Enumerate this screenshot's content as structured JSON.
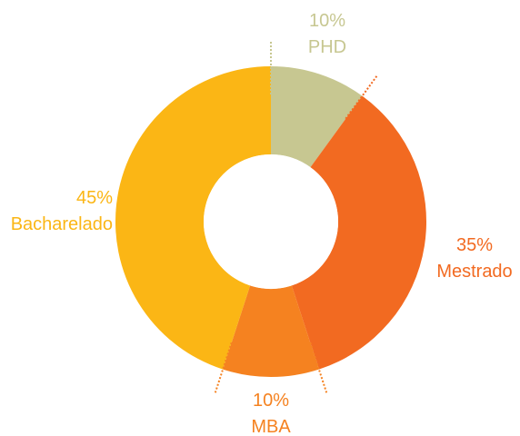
{
  "chart_data": {
    "type": "pie",
    "variant": "donut",
    "title": "",
    "slices": [
      {
        "name": "PHD",
        "value": 10,
        "value_label": "10%",
        "color": "#c7c791"
      },
      {
        "name": "Mestrado",
        "value": 35,
        "value_label": "35%",
        "color": "#f26a21"
      },
      {
        "name": "MBA",
        "value": 10,
        "value_label": "10%",
        "color": "#f58220"
      },
      {
        "name": "Bacharelado",
        "value": 45,
        "value_label": "45%",
        "color": "#fbb615"
      }
    ],
    "separator_style": "dotted",
    "legend": "none"
  }
}
